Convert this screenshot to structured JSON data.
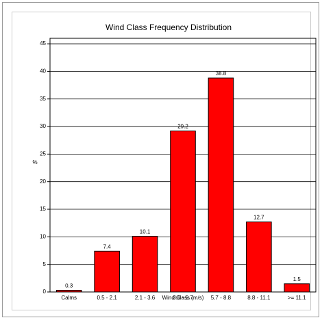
{
  "chart_data": {
    "type": "bar",
    "title": "Wind Class Frequency Distribution",
    "x_label": "Wind Class (m/s)",
    "y_label": "%",
    "categories": [
      "Calms",
      "0.5 - 2.1",
      "2.1 - 3.6",
      "3.6 - 5.7",
      "5.7 - 8.8",
      "8.8 - 11.1",
      ">= 11.1"
    ],
    "values": [
      0.3,
      7.4,
      10.1,
      29.2,
      38.8,
      12.7,
      1.5
    ],
    "color": "#ff0000",
    "ylim": [
      0,
      46
    ],
    "yticks": [
      0,
      5,
      10,
      15,
      20,
      25,
      30,
      35,
      40,
      45
    ],
    "grid": true
  }
}
